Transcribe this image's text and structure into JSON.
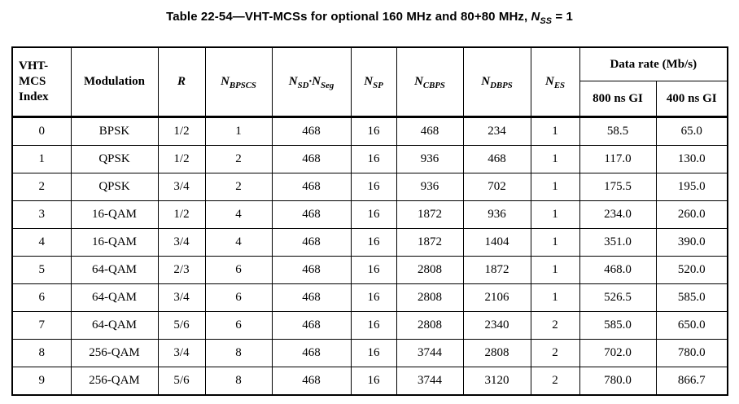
{
  "caption": {
    "segments": [
      {
        "text": "Table 22-54—VHT-MCSs for optional 160 MHz and 80+80 MHz, "
      },
      {
        "text": "N",
        "italic": true
      },
      {
        "text": "SS",
        "sub": true,
        "italic": true
      },
      {
        "text": " = 1"
      }
    ]
  },
  "table": {
    "columns": [
      {
        "name": "vht-mcs-index",
        "segments": [
          {
            "text": "VHT-"
          },
          {
            "br": true,
            "text": "MCS"
          },
          {
            "br": true,
            "text": "Index"
          }
        ]
      },
      {
        "name": "modulation",
        "segments": [
          {
            "text": "Modulation"
          }
        ]
      },
      {
        "name": "r",
        "segments": [
          {
            "text": "R",
            "italic": true
          }
        ]
      },
      {
        "name": "n-bpscs",
        "segments": [
          {
            "text": "N",
            "italic": true
          },
          {
            "text": "BPSCS",
            "sub": true,
            "italic": true
          }
        ]
      },
      {
        "name": "n-sd-n-seg",
        "segments": [
          {
            "text": "N",
            "italic": true
          },
          {
            "text": "SD",
            "sub": true,
            "italic": true
          },
          {
            "text": "·",
            "italic": true
          },
          {
            "text": "N",
            "italic": true
          },
          {
            "text": "Seg",
            "sub": true,
            "italic": true
          }
        ]
      },
      {
        "name": "n-sp",
        "segments": [
          {
            "text": "N",
            "italic": true
          },
          {
            "text": "SP",
            "sub": true,
            "italic": true
          }
        ]
      },
      {
        "name": "n-cbps",
        "segments": [
          {
            "text": "N",
            "italic": true
          },
          {
            "text": "CBPS",
            "sub": true,
            "italic": true
          }
        ]
      },
      {
        "name": "n-dbps",
        "segments": [
          {
            "text": "N",
            "italic": true
          },
          {
            "text": "DBPS",
            "sub": true,
            "italic": true
          }
        ]
      },
      {
        "name": "n-es",
        "segments": [
          {
            "text": "N",
            "italic": true
          },
          {
            "text": "ES",
            "sub": true,
            "italic": true
          }
        ]
      }
    ],
    "data_rate_group": {
      "label": "Data rate (Mb/s)",
      "sub_headers": [
        "800 ns GI",
        "400 ns GI"
      ]
    },
    "rows": [
      [
        "0",
        "BPSK",
        "1/2",
        "1",
        "468",
        "16",
        "468",
        "234",
        "1",
        "58.5",
        "65.0"
      ],
      [
        "1",
        "QPSK",
        "1/2",
        "2",
        "468",
        "16",
        "936",
        "468",
        "1",
        "117.0",
        "130.0"
      ],
      [
        "2",
        "QPSK",
        "3/4",
        "2",
        "468",
        "16",
        "936",
        "702",
        "1",
        "175.5",
        "195.0"
      ],
      [
        "3",
        "16-QAM",
        "1/2",
        "4",
        "468",
        "16",
        "1872",
        "936",
        "1",
        "234.0",
        "260.0"
      ],
      [
        "4",
        "16-QAM",
        "3/4",
        "4",
        "468",
        "16",
        "1872",
        "1404",
        "1",
        "351.0",
        "390.0"
      ],
      [
        "5",
        "64-QAM",
        "2/3",
        "6",
        "468",
        "16",
        "2808",
        "1872",
        "1",
        "468.0",
        "520.0"
      ],
      [
        "6",
        "64-QAM",
        "3/4",
        "6",
        "468",
        "16",
        "2808",
        "2106",
        "1",
        "526.5",
        "585.0"
      ],
      [
        "7",
        "64-QAM",
        "5/6",
        "6",
        "468",
        "16",
        "2808",
        "2340",
        "2",
        "585.0",
        "650.0"
      ],
      [
        "8",
        "256-QAM",
        "3/4",
        "8",
        "468",
        "16",
        "3744",
        "2808",
        "2",
        "702.0",
        "780.0"
      ],
      [
        "9",
        "256-QAM",
        "5/6",
        "8",
        "468",
        "16",
        "3744",
        "3120",
        "2",
        "780.0",
        "866.7"
      ]
    ]
  }
}
